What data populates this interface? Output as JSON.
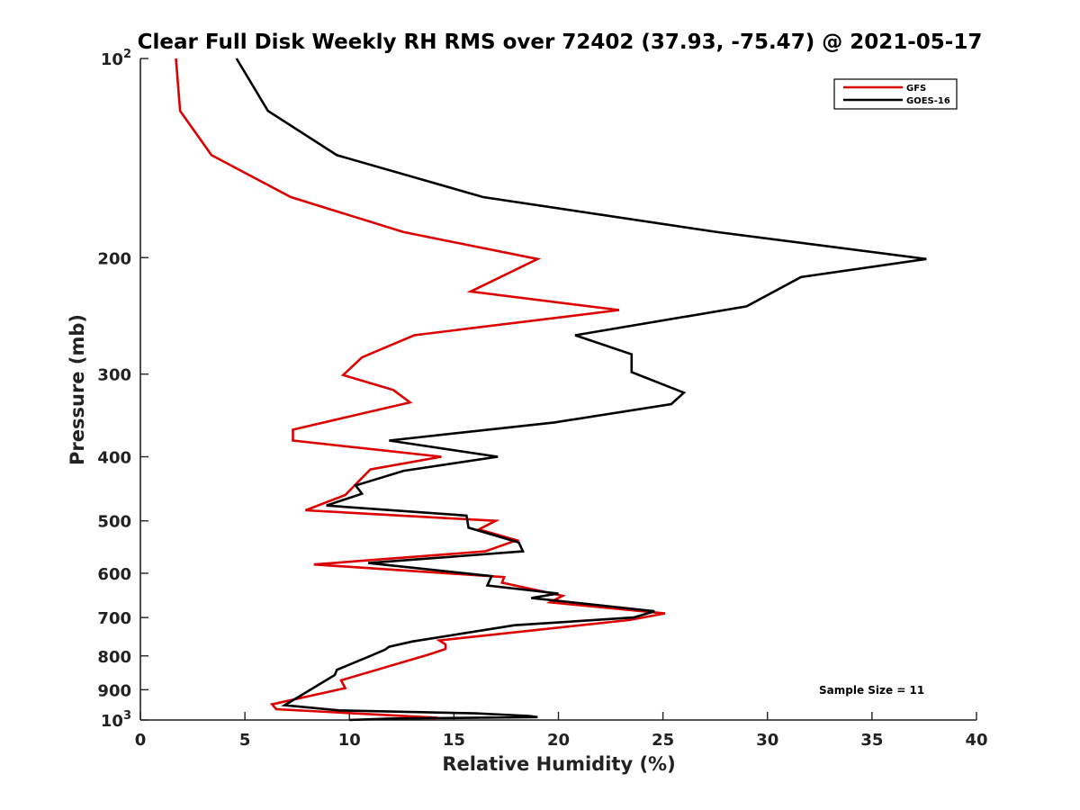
{
  "chart_data": {
    "type": "line",
    "title": "Clear Full Disk Weekly RH RMS over 72402 (37.93, -75.47) @ 2021-05-17",
    "xlabel": "Relative Humidity (%)",
    "ylabel": "Pressure (mb)",
    "xlim": [
      0,
      40
    ],
    "ylim": [
      100,
      1000
    ],
    "yscale": "log",
    "y_reversed": true,
    "grid": false,
    "legend_position": "top-right",
    "x_ticks": [
      "0",
      "5",
      "10",
      "15",
      "20",
      "25",
      "30",
      "35",
      "40"
    ],
    "x_tick_values": [
      0,
      5,
      10,
      15,
      20,
      25,
      30,
      35,
      40
    ],
    "y_ticks": [
      {
        "value": 100,
        "base": "10",
        "exp": "2"
      },
      {
        "value": 200,
        "label": "200"
      },
      {
        "value": 300,
        "label": "300"
      },
      {
        "value": 400,
        "label": "400"
      },
      {
        "value": 500,
        "label": "500"
      },
      {
        "value": 600,
        "label": "600"
      },
      {
        "value": 700,
        "label": "700"
      },
      {
        "value": 800,
        "label": "800"
      },
      {
        "value": 900,
        "label": "900"
      },
      {
        "value": 1000,
        "base": "10",
        "exp": "3"
      }
    ],
    "annotation": "Sample Size = 11",
    "series": [
      {
        "name": "GFS",
        "color": "#dd0000",
        "points": [
          [
            1.7,
            100
          ],
          [
            1.9,
            120
          ],
          [
            3.4,
            140
          ],
          [
            7.2,
            162
          ],
          [
            12.6,
            183
          ],
          [
            19.0,
            201
          ],
          [
            15.8,
            225
          ],
          [
            22.9,
            240
          ],
          [
            13.1,
            262
          ],
          [
            10.6,
            283
          ],
          [
            9.7,
            301
          ],
          [
            12.1,
            317
          ],
          [
            12.9,
            331
          ],
          [
            7.3,
            364
          ],
          [
            7.3,
            378
          ],
          [
            14.4,
            400
          ],
          [
            11.0,
            418
          ],
          [
            9.8,
            457
          ],
          [
            7.9,
            482
          ],
          [
            17.0,
            500
          ],
          [
            16.2,
            515
          ],
          [
            18.0,
            535
          ],
          [
            16.5,
            556
          ],
          [
            8.3,
            582
          ],
          [
            17.4,
            608
          ],
          [
            17.3,
            620
          ],
          [
            20.2,
            649
          ],
          [
            19.6,
            664
          ],
          [
            25.1,
            690
          ],
          [
            23.4,
            706
          ],
          [
            14.3,
            758
          ],
          [
            14.6,
            769
          ],
          [
            14.6,
            781
          ],
          [
            13.8,
            796
          ],
          [
            9.6,
            871
          ],
          [
            9.8,
            895
          ],
          [
            6.3,
            947
          ],
          [
            6.5,
            963
          ],
          [
            14.1,
            992
          ],
          [
            14.0,
            998
          ]
        ]
      },
      {
        "name": "GOES-16",
        "color": "#000000",
        "points": [
          [
            4.6,
            100
          ],
          [
            6.1,
            120
          ],
          [
            9.4,
            140
          ],
          [
            16.4,
            162
          ],
          [
            27.6,
            183
          ],
          [
            37.6,
            201
          ],
          [
            31.6,
            214
          ],
          [
            29.0,
            237
          ],
          [
            20.8,
            262
          ],
          [
            23.5,
            280
          ],
          [
            23.5,
            298
          ],
          [
            26.0,
            320
          ],
          [
            25.4,
            333
          ],
          [
            19.8,
            355
          ],
          [
            11.9,
            378
          ],
          [
            17.1,
            400
          ],
          [
            12.6,
            420
          ],
          [
            10.3,
            442
          ],
          [
            10.6,
            455
          ],
          [
            8.9,
            474
          ],
          [
            15.6,
            491
          ],
          [
            15.7,
            512
          ],
          [
            18.1,
            539
          ],
          [
            18.3,
            556
          ],
          [
            10.9,
            579
          ],
          [
            16.8,
            606
          ],
          [
            16.6,
            626
          ],
          [
            20.0,
            644
          ],
          [
            18.7,
            654
          ],
          [
            24.6,
            685
          ],
          [
            23.6,
            700
          ],
          [
            17.9,
            719
          ],
          [
            13.0,
            761
          ],
          [
            11.9,
            775
          ],
          [
            11.7,
            783
          ],
          [
            11.0,
            800
          ],
          [
            9.4,
            840
          ],
          [
            9.3,
            855
          ],
          [
            6.9,
            950
          ],
          [
            9.5,
            967
          ],
          [
            16.0,
            977
          ],
          [
            18.6,
            986
          ],
          [
            19.0,
            990
          ],
          [
            11.9,
            995
          ],
          [
            10.0,
            1000
          ]
        ]
      }
    ]
  }
}
